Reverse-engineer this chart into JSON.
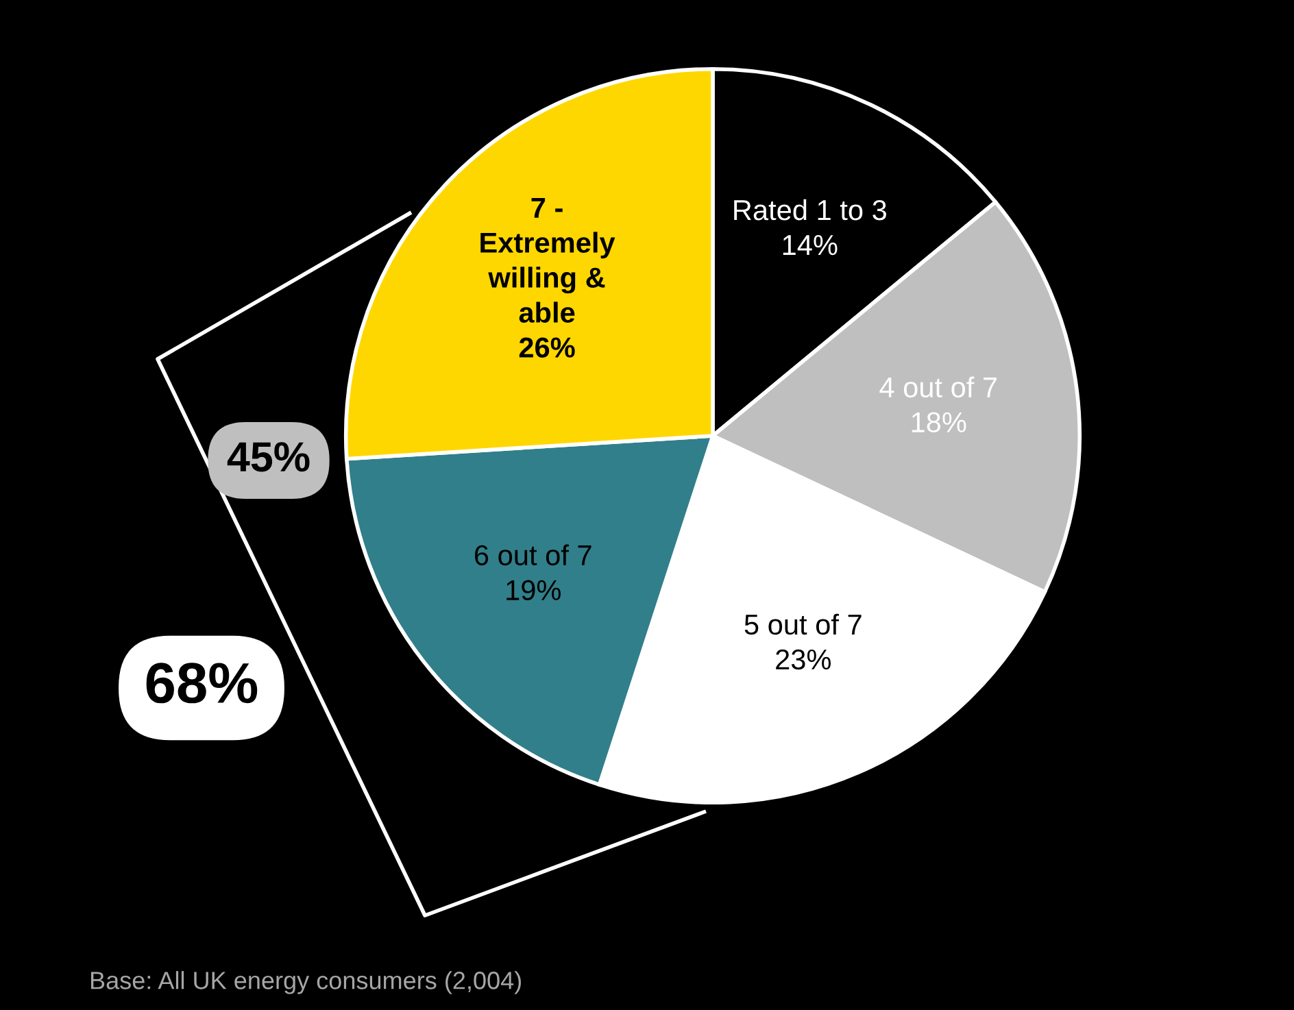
{
  "chart_data": {
    "type": "pie",
    "categories": [
      "Rated 1 to 3",
      "4 out of 7",
      "5 out of 7",
      "6 out of 7",
      "7 -\nExtremely\nwilling &\nable"
    ],
    "values": [
      14,
      18,
      23,
      19,
      26
    ],
    "colors": [
      "#000000",
      "#bfbfbf",
      "#ffffff",
      "#317f8a",
      "#ffd700"
    ],
    "value_labels": [
      "14%",
      "18%",
      "23%",
      "19%",
      "26%"
    ],
    "annotations": [
      "45%",
      "68%",
      "Base: All UK energy consumers (2,004)"
    ]
  }
}
